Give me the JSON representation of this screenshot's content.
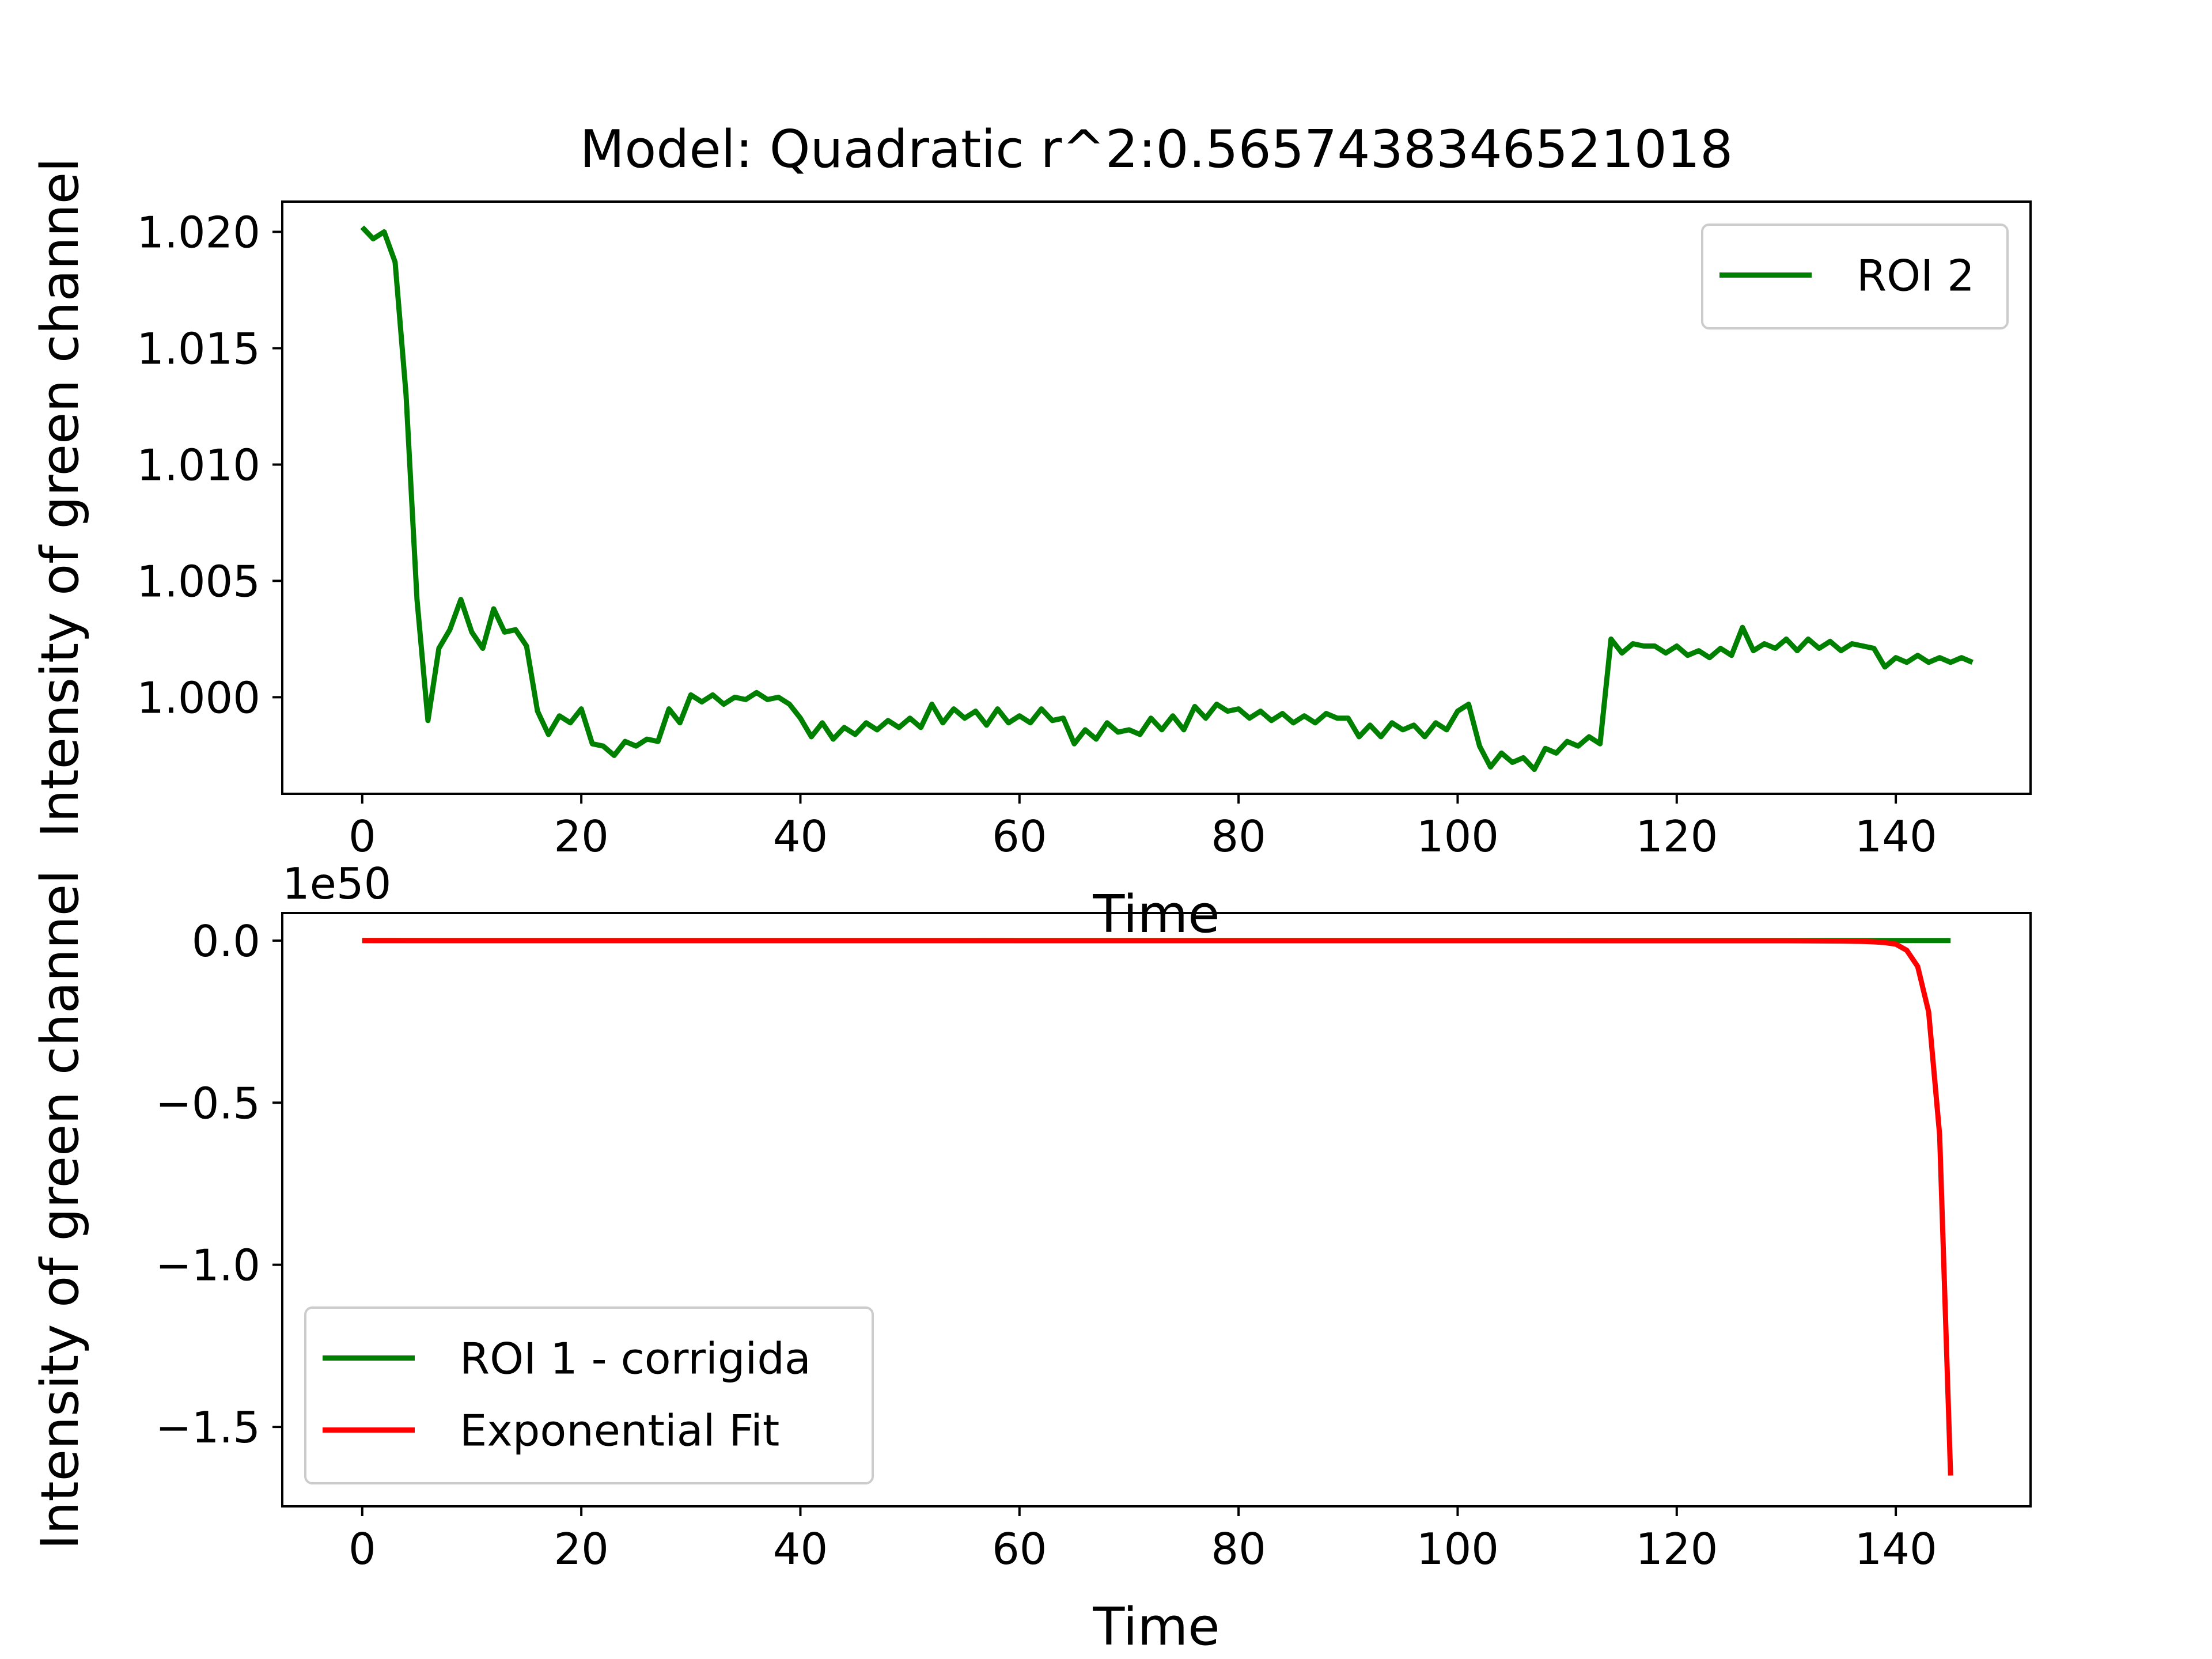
{
  "chart_data": [
    {
      "type": "line",
      "title": "Model: Quadratic r^2:0.5657438346521018",
      "xlabel": "Time",
      "ylabel": "Intensity of green channel",
      "xlim": [
        -7.3,
        152.3
      ],
      "ylim": [
        0.99585,
        1.0213
      ],
      "xticks": [
        0,
        20,
        40,
        60,
        80,
        100,
        120,
        140
      ],
      "xtick_labels": [
        "0",
        "20",
        "40",
        "60",
        "80",
        "100",
        "120",
        "140"
      ],
      "yticks": [
        1.0,
        1.005,
        1.01,
        1.015,
        1.02
      ],
      "ytick_labels": [
        "1.000",
        "1.005",
        "1.010",
        "1.015",
        "1.020"
      ],
      "grid": false,
      "legend": "upper right",
      "series": [
        {
          "name": "ROI 2",
          "color": "#008000",
          "x_start": 0,
          "x_step": 1,
          "values": [
            1.0202,
            1.0197,
            1.02,
            1.0187,
            1.013,
            1.0042,
            0.999,
            1.0021,
            1.0029,
            1.0042,
            1.0028,
            1.0021,
            1.0038,
            1.0028,
            1.0029,
            1.0022,
            0.9994,
            0.9984,
            0.9992,
            0.9989,
            0.9995,
            0.998,
            0.9979,
            0.9975,
            0.9981,
            0.9979,
            0.9982,
            0.9981,
            0.9995,
            0.9989,
            1.0001,
            0.9998,
            1.0001,
            0.9997,
            1.0,
            0.9999,
            1.0002,
            0.9999,
            1.0,
            0.9997,
            0.9991,
            0.9983,
            0.9989,
            0.9982,
            0.9987,
            0.9984,
            0.9989,
            0.9986,
            0.999,
            0.9987,
            0.9991,
            0.9987,
            0.9997,
            0.9989,
            0.9995,
            0.9991,
            0.9994,
            0.9988,
            0.9995,
            0.9989,
            0.9992,
            0.9989,
            0.9995,
            0.999,
            0.9991,
            0.998,
            0.9986,
            0.9982,
            0.9989,
            0.9985,
            0.9986,
            0.9984,
            0.9991,
            0.9986,
            0.9992,
            0.9986,
            0.9996,
            0.9991,
            0.9997,
            0.9994,
            0.9995,
            0.9991,
            0.9994,
            0.999,
            0.9993,
            0.9989,
            0.9992,
            0.9989,
            0.9993,
            0.9991,
            0.9991,
            0.9983,
            0.9988,
            0.9983,
            0.9989,
            0.9986,
            0.9988,
            0.9983,
            0.9989,
            0.9986,
            0.9994,
            0.9997,
            0.9979,
            0.997,
            0.9976,
            0.9972,
            0.9974,
            0.9969,
            0.9978,
            0.9976,
            0.9981,
            0.9979,
            0.9983,
            0.998,
            1.0025,
            1.0019,
            1.0023,
            1.0022,
            1.0022,
            1.0019,
            1.0022,
            1.0018,
            1.002,
            1.0017,
            1.0021,
            1.0018,
            1.003,
            1.002,
            1.0023,
            1.0021,
            1.0025,
            1.002,
            1.0025,
            1.0021,
            1.0024,
            1.002,
            1.0023,
            1.0022,
            1.0021,
            1.0013,
            1.0017,
            1.0015,
            1.0018,
            1.0015,
            1.0017,
            1.0015,
            1.0017,
            1.0015
          ]
        }
      ]
    },
    {
      "type": "line",
      "xlabel": "Time",
      "ylabel": "Intensity of green channel",
      "offset_label": "1e50",
      "xlim": [
        -7.3,
        152.3
      ],
      "ylim": [
        -1.745,
        0.085
      ],
      "xticks": [
        0,
        20,
        40,
        60,
        80,
        100,
        120,
        140
      ],
      "xtick_labels": [
        "0",
        "20",
        "40",
        "60",
        "80",
        "100",
        "120",
        "140"
      ],
      "yticks": [
        0.0,
        -0.5,
        -1.0,
        -1.5
      ],
      "ytick_labels": [
        "0.0",
        "−0.5",
        "−1.0",
        "−1.5"
      ],
      "y_units": "1e50",
      "grid": false,
      "legend": "lower left",
      "series": [
        {
          "name": "ROI 1 - corrigida",
          "color": "#008000",
          "x": [
            0,
            145
          ],
          "values": [
            0.0,
            0.0
          ]
        },
        {
          "name": "Exponential Fit",
          "color": "#ff0000",
          "x": [
            0,
            130,
            135,
            137,
            138,
            139,
            140,
            141,
            142,
            143,
            144,
            145
          ],
          "values": [
            0.0,
            -0.0004,
            -0.0014,
            -0.0026,
            -0.0038,
            -0.0062,
            -0.011,
            -0.03,
            -0.08,
            -0.22,
            -0.6,
            -1.65
          ]
        }
      ]
    }
  ]
}
